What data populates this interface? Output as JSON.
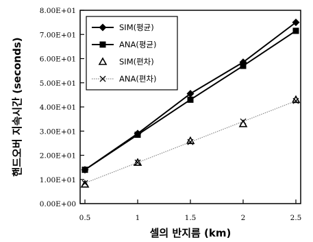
{
  "chart_data": {
    "type": "line",
    "title": "",
    "xlabel": "셀의 반지름 (km)",
    "ylabel": "핸드오버 지속시간 (seconds)",
    "xlim": [
      0.5,
      2.5
    ],
    "ylim": [
      0,
      80
    ],
    "x": [
      0.5,
      1,
      1.5,
      2,
      2.5
    ],
    "xticks": [
      0.5,
      1,
      1.5,
      2,
      2.5
    ],
    "xtick_labels": [
      "0.5",
      "1",
      "1.5",
      "2",
      "2.5"
    ],
    "yticks": [
      0,
      10,
      20,
      30,
      40,
      50,
      60,
      70,
      80
    ],
    "ytick_labels": [
      "0.00E+00",
      "1.00E+01",
      "2.00E+01",
      "3.00E+01",
      "4.00E+01",
      "5.00E+01",
      "6.00E+01",
      "7.00E+01",
      "8.00E+01"
    ],
    "grid": false,
    "legend_position": "top-left",
    "series": [
      {
        "name": "SIM(평균)",
        "values": [
          14.0,
          29.0,
          45.5,
          58.5,
          75.0
        ],
        "marker": "diamond",
        "line": "solid",
        "color": "#000000"
      },
      {
        "name": "ANA(평균)",
        "values": [
          14.0,
          28.5,
          43.0,
          57.0,
          71.5
        ],
        "marker": "square",
        "line": "solid",
        "color": "#000000"
      },
      {
        "name": "SIM(편차)",
        "values": [
          8.0,
          17.0,
          26.0,
          33.0,
          43.0
        ],
        "marker": "triangle-open",
        "line": "none",
        "color": "#000000"
      },
      {
        "name": "ANA(편차)",
        "values": [
          8.5,
          17.0,
          25.5,
          34.0,
          42.5
        ],
        "marker": "x",
        "line": "dotted",
        "color": "#888888"
      }
    ]
  }
}
